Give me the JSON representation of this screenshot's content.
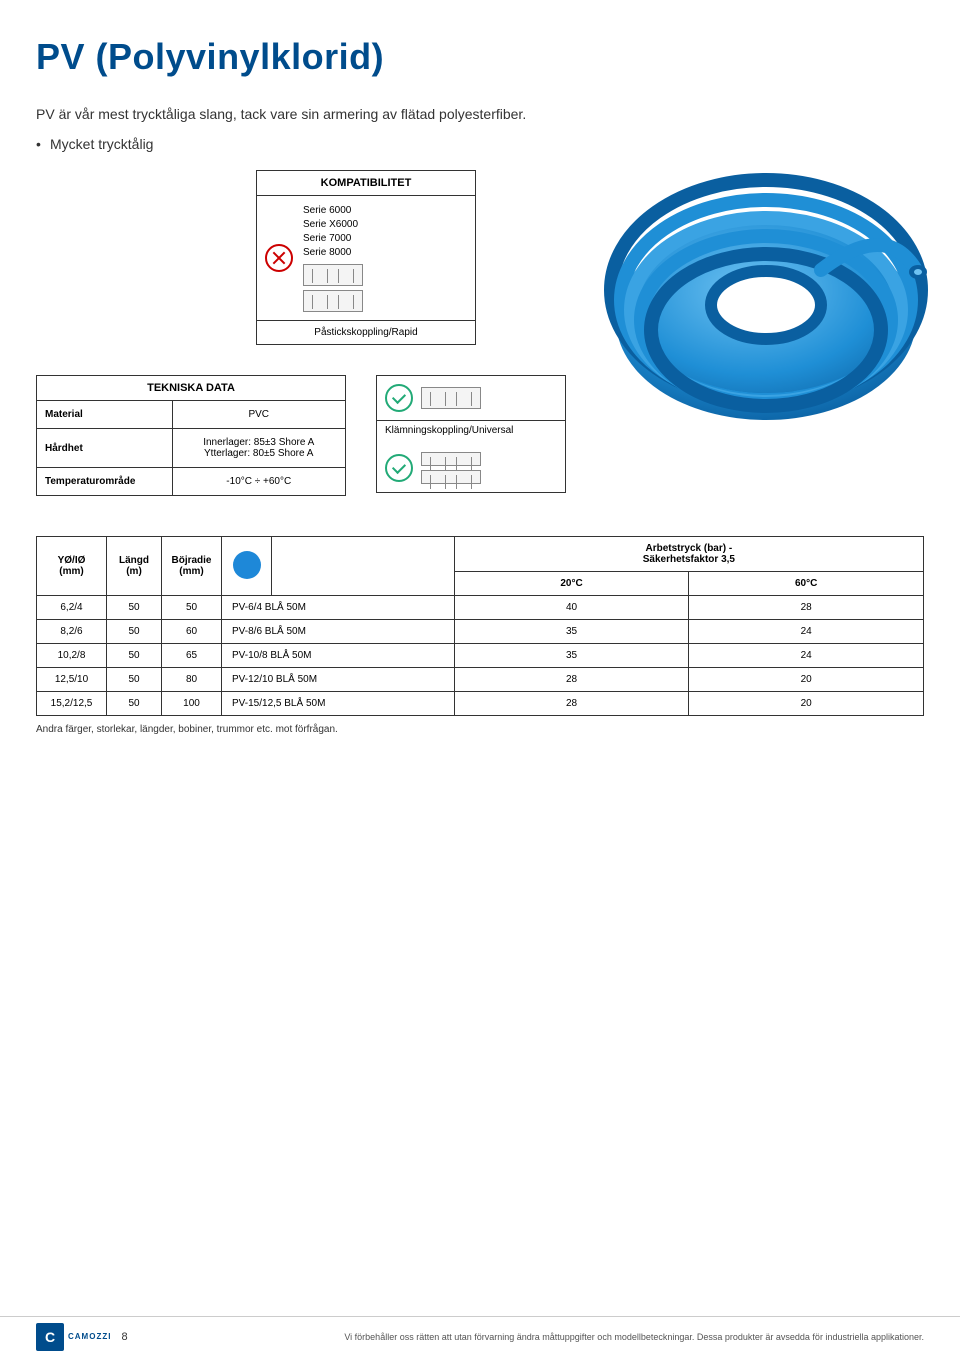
{
  "title": "PV (Polyvinylklorid)",
  "intro": "PV är vår mest trycktåliga slang, tack vare sin armering av flätad polyesterfiber.",
  "bullets": [
    "Mycket trycktålig"
  ],
  "kompat": {
    "title": "KOMPATIBILITET",
    "series": [
      "Serie 6000",
      "Serie X6000",
      "Serie 7000",
      "Serie 8000"
    ],
    "footer": "Påstickskoppling/Rapid"
  },
  "teknisk": {
    "title": "TEKNISKA DATA",
    "rows": [
      {
        "label": "Material",
        "value": "PVC"
      },
      {
        "label": "Hårdhet",
        "value": "Innerlager: 85±3 Shore A\nYtterlager: 80±5 Shore A"
      },
      {
        "label": "Temperaturområde",
        "value": "-10°C ÷ +60°C"
      }
    ]
  },
  "coupling_label": "Klämningskoppling/Universal",
  "main_table": {
    "headers": {
      "yoio": "YØ/IØ\n(mm)",
      "langd": "Längd\n(m)",
      "bojradie": "Böjradie\n(mm)",
      "part": "",
      "arbetstryck": "Arbetstryck (bar) -\nSäkerhetsfaktor 3,5",
      "t20": "20°C",
      "t60": "60°C"
    },
    "color_dot": "#1e88d8",
    "rows": [
      {
        "yoio": "6,2/4",
        "langd": "50",
        "boj": "50",
        "part": "PV-6/4 BLÅ 50M",
        "t20": "40",
        "t60": "28"
      },
      {
        "yoio": "8,2/6",
        "langd": "50",
        "boj": "60",
        "part": "PV-8/6 BLÅ 50M",
        "t20": "35",
        "t60": "24"
      },
      {
        "yoio": "10,2/8",
        "langd": "50",
        "boj": "65",
        "part": "PV-10/8 BLÅ 50M",
        "t20": "35",
        "t60": "24"
      },
      {
        "yoio": "12,5/10",
        "langd": "50",
        "boj": "80",
        "part": "PV-12/10 BLÅ 50M",
        "t20": "28",
        "t60": "20"
      },
      {
        "yoio": "15,2/12,5",
        "langd": "50",
        "boj": "100",
        "part": "PV-15/12,5 BLÅ 50M",
        "t20": "28",
        "t60": "20"
      }
    ],
    "footnote": "Andra färger, storlekar, längder, bobiner, trummor etc. mot förfrågan."
  },
  "footer": {
    "brand": "CAMOZZI",
    "page": "8",
    "disclaimer": "Vi förbehåller oss rätten att utan förvarning ändra måttuppgifter och modellbeteckningar. Dessa produkter är avsedda för industriella applikationer."
  },
  "hose_color_outer": "#1f8fd6",
  "hose_color_inner": "#0a5fa0"
}
